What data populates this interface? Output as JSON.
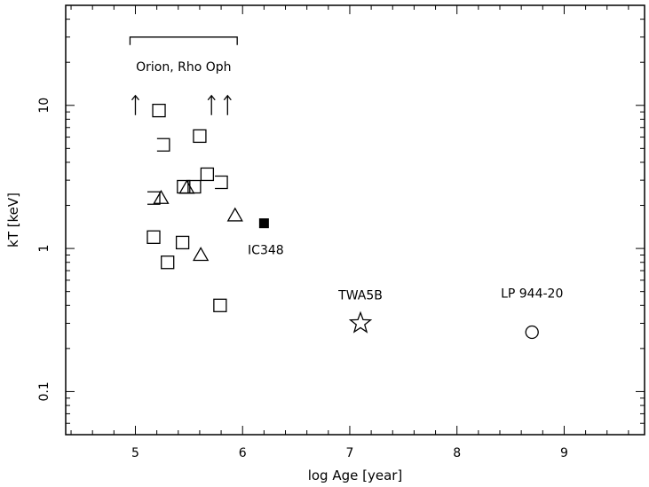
{
  "chart_data": {
    "type": "scatter",
    "title": "",
    "xlabel": "log Age [year]",
    "ylabel": "kT [keV]",
    "xlim": [
      4.35,
      9.75
    ],
    "ylim": [
      0.05,
      50
    ],
    "yscale": "log",
    "x_ticks": [
      5,
      6,
      7,
      8,
      9
    ],
    "x_tick_labels": [
      "5",
      "6",
      "7",
      "8",
      "9"
    ],
    "y_ticks": [
      0.1,
      1,
      10
    ],
    "y_tick_labels": [
      "0.1",
      "1",
      "10"
    ],
    "grid": false,
    "range_bracket": {
      "x": [
        4.95,
        5.95
      ],
      "y": 30,
      "label": "Orion, Rho Oph"
    },
    "series": [
      {
        "marker": "open-square",
        "points": [
          {
            "x": 5.22,
            "y": 9.2
          },
          {
            "x": 5.6,
            "y": 6.1
          },
          {
            "x": 5.67,
            "y": 3.3
          },
          {
            "x": 5.45,
            "y": 2.7
          },
          {
            "x": 5.55,
            "y": 2.7
          },
          {
            "x": 5.17,
            "y": 1.2
          },
          {
            "x": 5.44,
            "y": 1.1
          },
          {
            "x": 5.3,
            "y": 0.8
          },
          {
            "x": 5.79,
            "y": 0.4
          }
        ]
      },
      {
        "marker": "partial-square",
        "points": [
          {
            "x": 5.26,
            "y": 5.3
          },
          {
            "x": 5.8,
            "y": 2.9
          },
          {
            "x": 5.17,
            "y": 2.25
          }
        ]
      },
      {
        "marker": "open-triangle",
        "points": [
          {
            "x": 5.24,
            "y": 2.25
          },
          {
            "x": 5.48,
            "y": 2.65
          },
          {
            "x": 5.93,
            "y": 1.7
          },
          {
            "x": 5.61,
            "y": 0.9
          }
        ]
      },
      {
        "marker": "up-arrow",
        "points": [
          {
            "x": 5.0,
            "y": 10
          },
          {
            "x": 5.71,
            "y": 10
          },
          {
            "x": 5.86,
            "y": 10
          }
        ]
      },
      {
        "marker": "filled-square",
        "points": [
          {
            "x": 6.2,
            "y": 1.5,
            "label": "IC348"
          }
        ]
      },
      {
        "marker": "open-star",
        "points": [
          {
            "x": 7.1,
            "y": 0.3,
            "label": "TWA5B"
          }
        ]
      },
      {
        "marker": "open-circle",
        "points": [
          {
            "x": 8.7,
            "y": 0.26,
            "label": "LP 944-20"
          }
        ]
      }
    ]
  }
}
